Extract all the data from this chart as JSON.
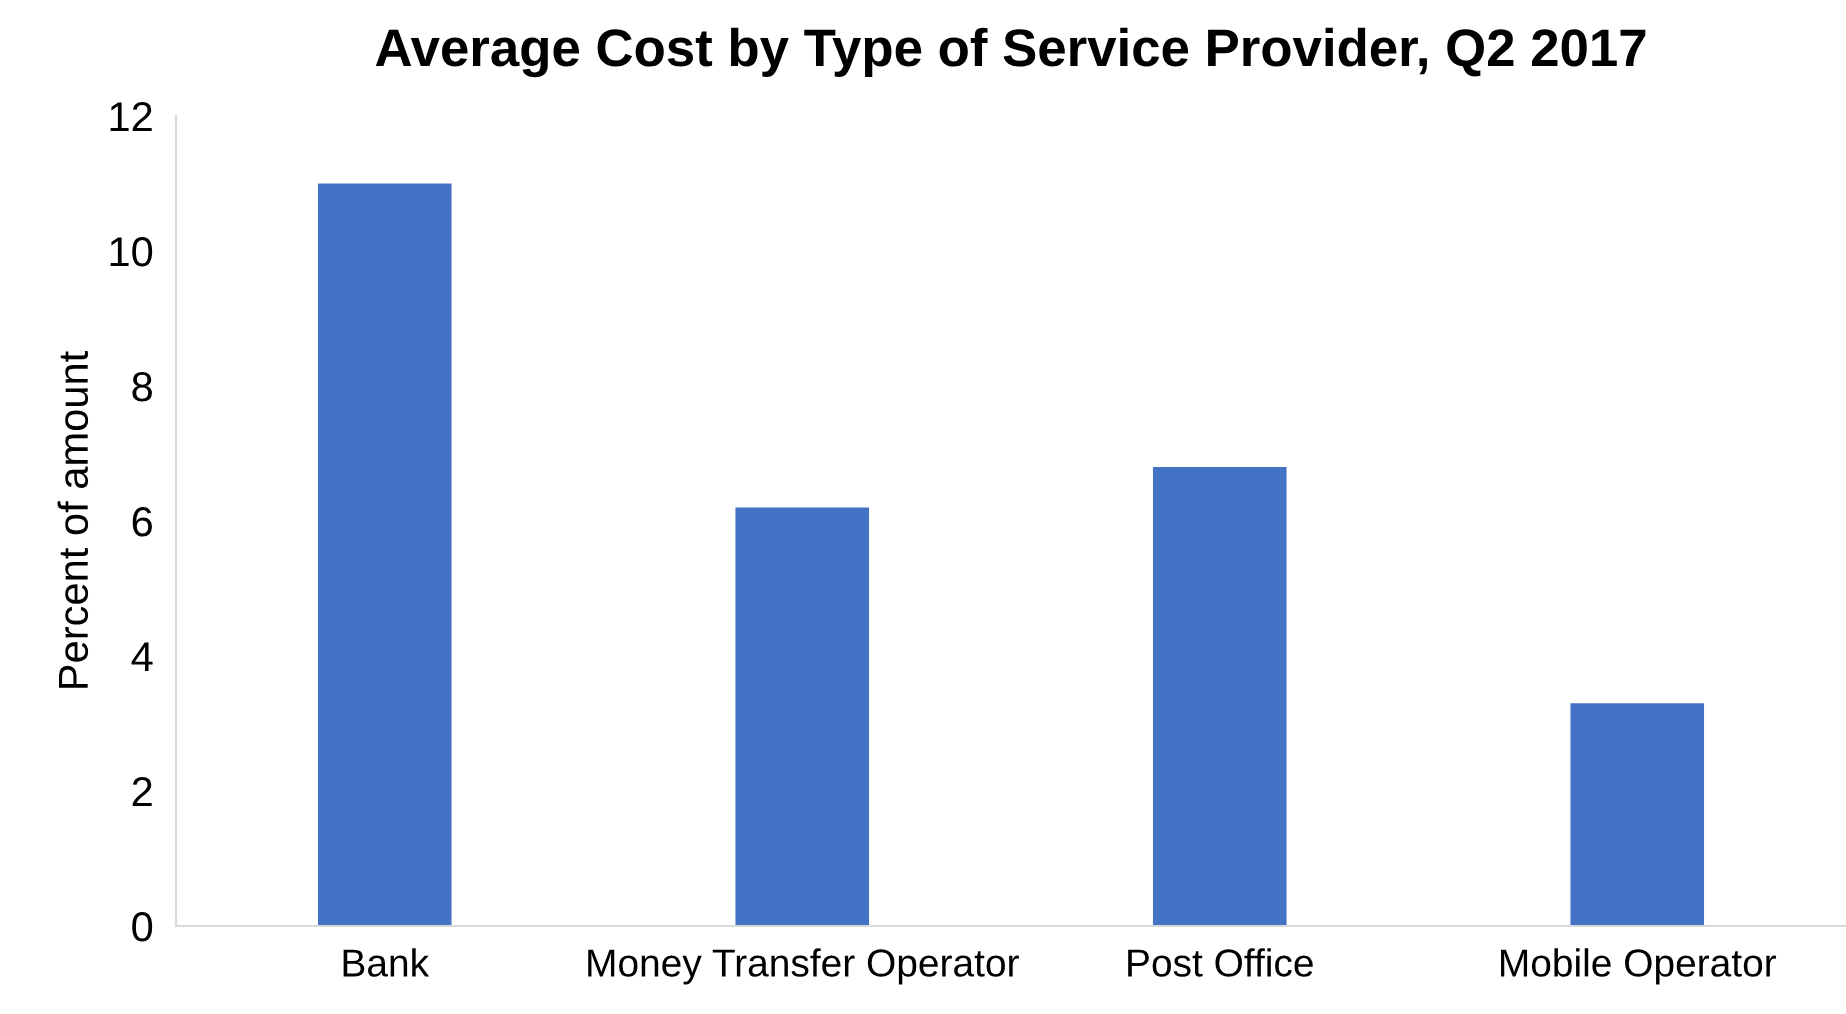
{
  "chart_data": {
    "type": "bar",
    "title": "Average Cost by Type of Service Provider, Q2 2017",
    "ylabel": "Percent of amount",
    "categories": [
      "Bank",
      "Money Transfer Operator",
      "Post Office",
      "Mobile Operator"
    ],
    "values": [
      11.0,
      6.2,
      6.8,
      3.3
    ],
    "color": "#4472c4",
    "ylim": [
      0,
      12
    ],
    "yticks": [
      0,
      2,
      4,
      6,
      8,
      10,
      12
    ],
    "grid": false
  }
}
